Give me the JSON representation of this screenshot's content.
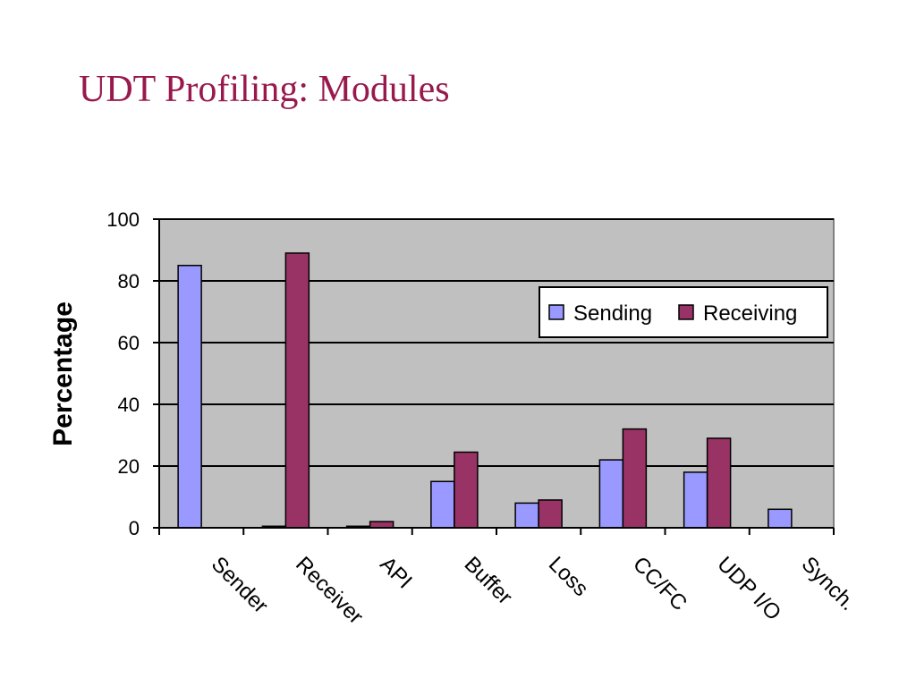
{
  "slide": {
    "title": "UDT Profiling: Modules"
  },
  "chart_data": {
    "type": "bar",
    "title": "",
    "xlabel": "",
    "ylabel": "Percentage",
    "ylim": [
      0,
      100
    ],
    "yticks": [
      0,
      20,
      40,
      60,
      80,
      100
    ],
    "grid": true,
    "legend_position": "top-right",
    "categories": [
      "Sender",
      "Receiver",
      "API",
      "Buffer",
      "Loss",
      "CC/FC",
      "UDP I/O",
      "Synch."
    ],
    "series": [
      {
        "name": "Sending",
        "color": "#9999ff",
        "values": [
          85,
          0.5,
          0.5,
          15,
          8,
          22,
          18,
          6
        ]
      },
      {
        "name": "Receiving",
        "color": "#993366",
        "values": [
          0,
          89,
          2,
          24.5,
          9,
          32,
          29,
          0
        ]
      }
    ],
    "plot_background": "#c0c0c0"
  }
}
